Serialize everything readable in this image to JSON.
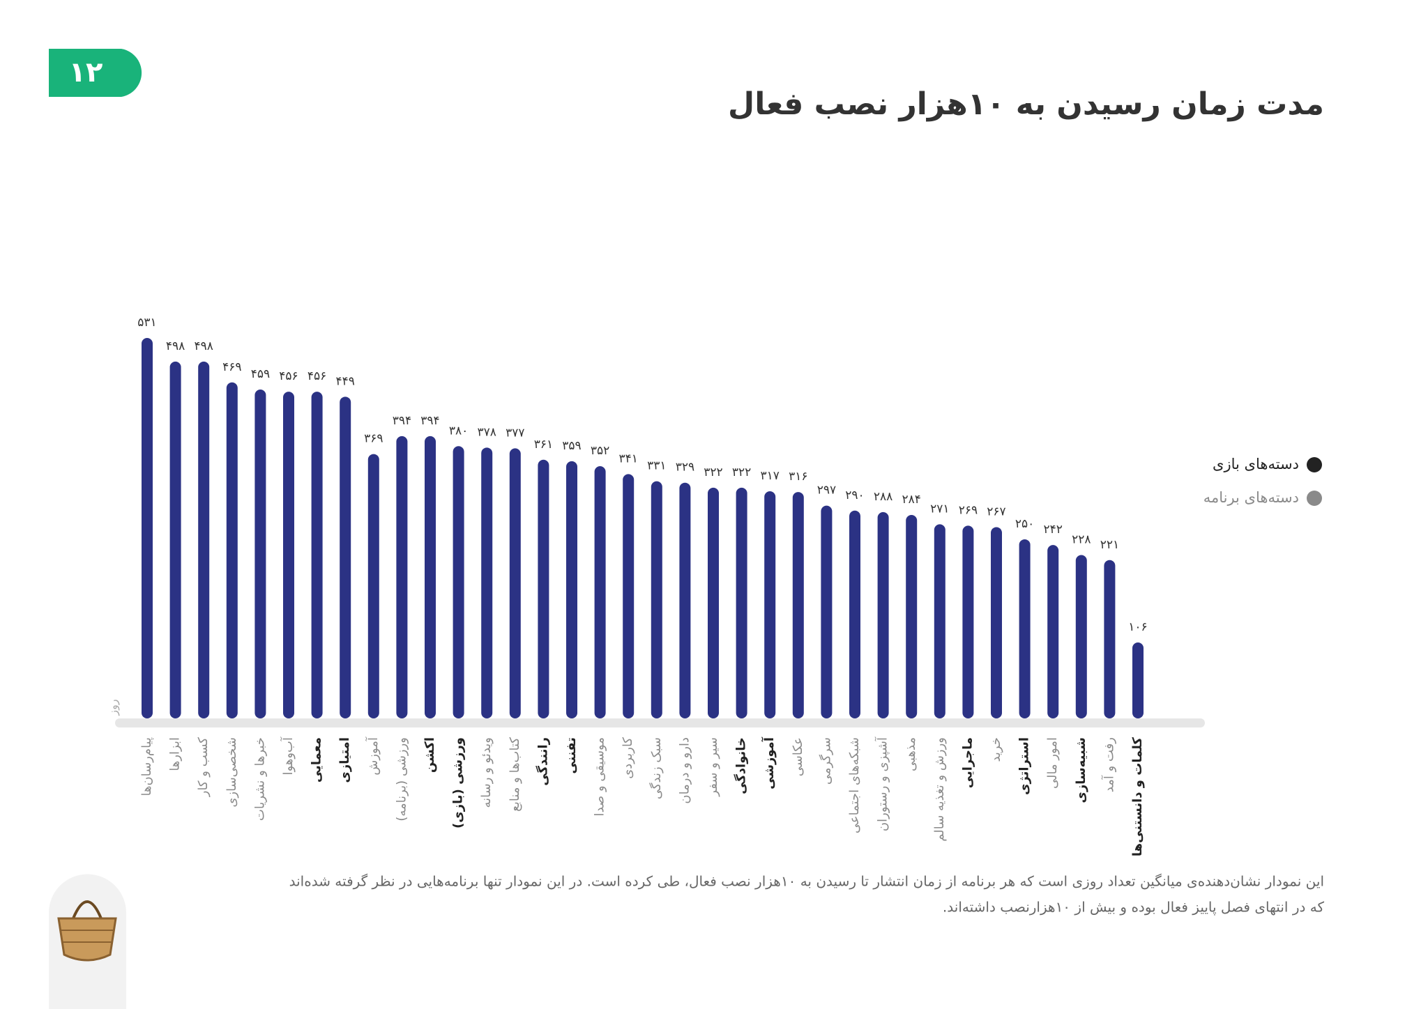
{
  "page_number": "۱۲",
  "chart_data": {
    "type": "bar",
    "title": "مدت زمان رسیدن به ۱۰هزار نصب فعال",
    "y_unit": "روز",
    "categories": [
      "پیام‌رسان‌ها",
      "ابزارها",
      "کسب و کار",
      "شخصی‌سازی",
      "خبرها و نشریات",
      "آب‌وهوا",
      "معمایی",
      "امتیازی",
      "آموزش",
      "ورزشی (برنامه)",
      "اکشن",
      "ورزشی (بازی)",
      "ویدئو و رسانه",
      "کتاب‌ها و منابع",
      "رانندگی",
      "تفننی",
      "موسیقی و صدا",
      "کاربردی",
      "سبک زندگی",
      "دارو و درمان",
      "سیر و سفر",
      "خانوادگی",
      "آموزشی",
      "عکاسی",
      "سرگرمی",
      "شبکه‌های اجتماعی",
      "آشپزی و رستوران",
      "مذهبی",
      "ورزش و تغذیه سالم",
      "ماجرایی",
      "خرید",
      "استراتژی",
      "امور مالی",
      "شبیه‌سازی",
      "رفت و آمد",
      "کلمات و دانستنی‌ها"
    ],
    "values": [
      531,
      498,
      498,
      469,
      459,
      456,
      456,
      449,
      369,
      394,
      394,
      380,
      378,
      377,
      361,
      359,
      352,
      341,
      331,
      329,
      322,
      322,
      317,
      316,
      297,
      290,
      288,
      284,
      271,
      269,
      267,
      250,
      242,
      228,
      221,
      106
    ],
    "value_labels": [
      "۵۳۱",
      "۴۹۸",
      "۴۹۸",
      "۴۶۹",
      "۴۵۹",
      "۴۵۶",
      "۴۵۶",
      "۴۴۹",
      "۳۶۹",
      "۳۹۴",
      "۳۹۴",
      "۳۸۰",
      "۳۷۸",
      "۳۷۷",
      "۳۶۱",
      "۳۵۹",
      "۳۵۲",
      "۳۴۱",
      "۳۳۱",
      "۳۲۹",
      "۳۲۲",
      "۳۲۲",
      "۳۱۷",
      "۳۱۶",
      "۲۹۷",
      "۲۹۰",
      "۲۸۸",
      "۲۸۴",
      "۲۷۱",
      "۲۶۹",
      "۲۶۷",
      "۲۵۰",
      "۲۴۲",
      "۲۲۸",
      "۲۲۱",
      "۱۰۶"
    ],
    "color": "#2b3284",
    "ylim": [
      0,
      531
    ],
    "legend": [
      {
        "name": "دسته‌های بازی",
        "color": "#222222"
      },
      {
        "name": "دسته‌های برنامه",
        "color": "#8a8a8a"
      }
    ],
    "label_colors": [
      "#8a8a8a",
      "#8a8a8a",
      "#8a8a8a",
      "#8a8a8a",
      "#8a8a8a",
      "#8a8a8a",
      "#222222",
      "#222222",
      "#8a8a8a",
      "#8a8a8a",
      "#222222",
      "#222222",
      "#8a8a8a",
      "#8a8a8a",
      "#222222",
      "#222222",
      "#8a8a8a",
      "#8a8a8a",
      "#8a8a8a",
      "#8a8a8a",
      "#8a8a8a",
      "#222222",
      "#222222",
      "#8a8a8a",
      "#8a8a8a",
      "#8a8a8a",
      "#8a8a8a",
      "#8a8a8a",
      "#8a8a8a",
      "#222222",
      "#8a8a8a",
      "#222222",
      "#8a8a8a",
      "#222222",
      "#8a8a8a",
      "#222222"
    ]
  },
  "footnote": [
    "این نمودار نشان‌دهنده‌ی میانگین تعداد روزی است که هر برنامه از زمان انتشار تا رسیدن به ۱۰هزار نصب فعال، طی کرده است. در این نمودار تنها برنامه‌هایی در نظر گرفته شده‌اند",
    "که در انتهای فصل پاییز فعال بوده و بیش از ۱۰هزارنصب داشته‌اند."
  ]
}
